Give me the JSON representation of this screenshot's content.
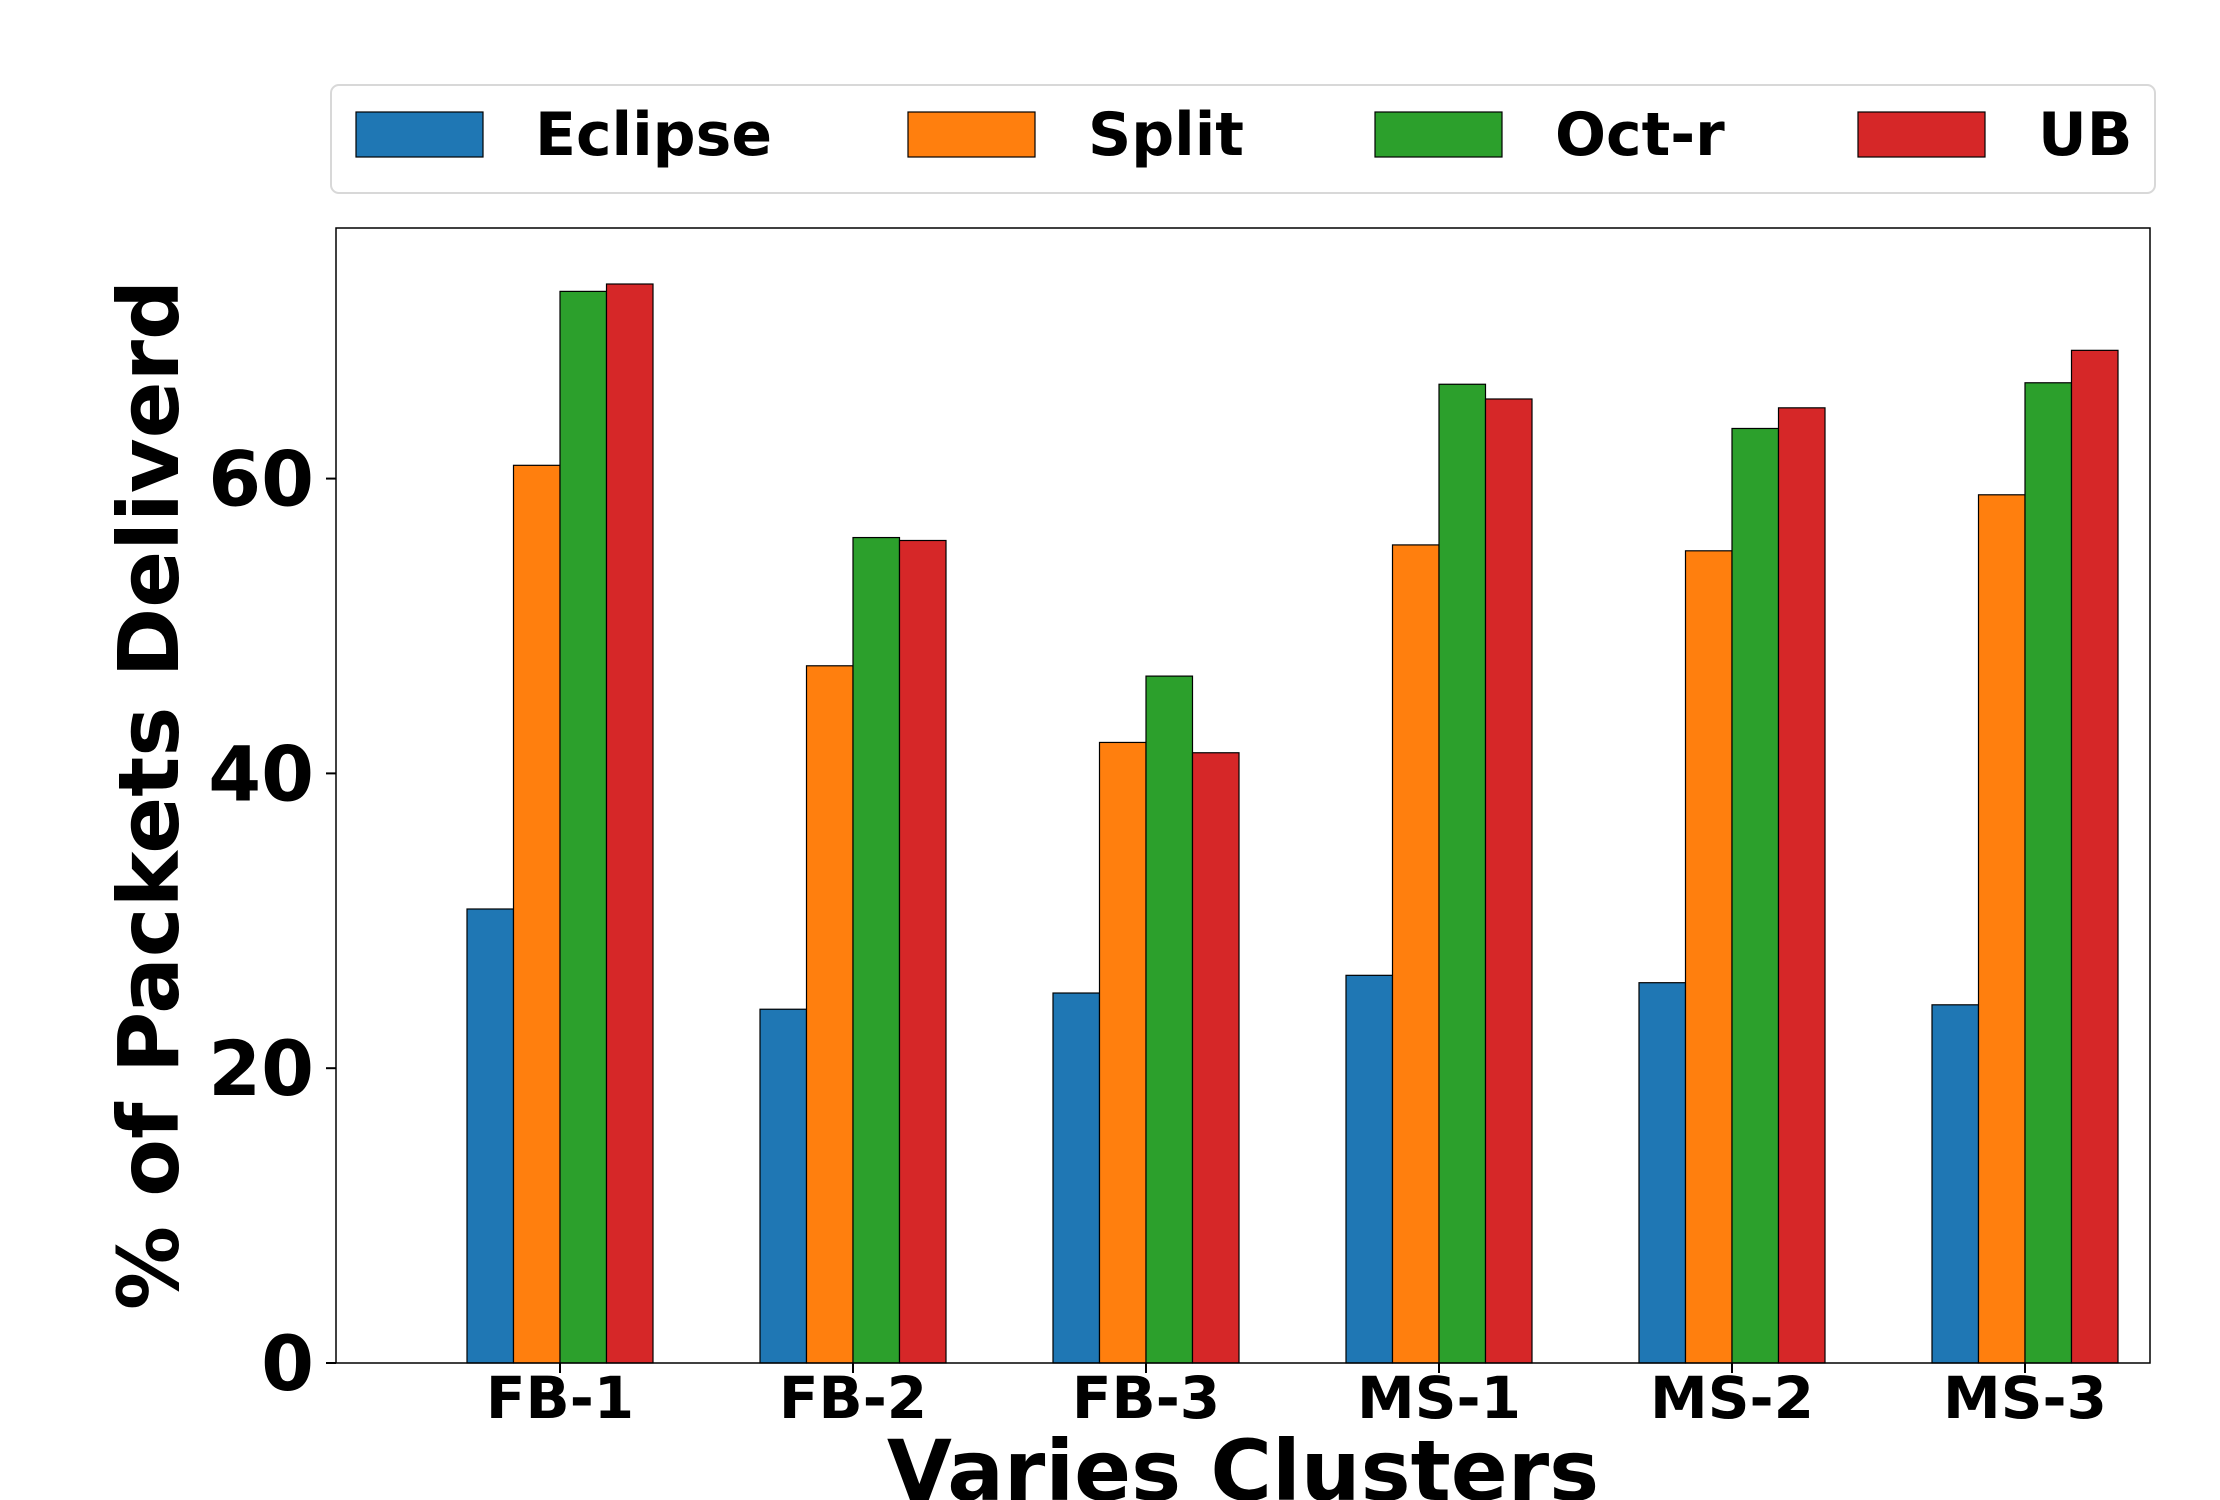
{
  "chart_data": {
    "type": "bar",
    "title": "",
    "xlabel": "Varies Clusters",
    "ylabel": "% of Packets Deliverd",
    "categories": [
      "FB-1",
      "FB-2",
      "FB-3",
      "MS-1",
      "MS-2",
      "MS-3"
    ],
    "series": [
      {
        "name": "Eclipse",
        "color": "#1f77b4",
        "values": [
          30.8,
          24.0,
          25.1,
          26.3,
          25.8,
          24.3
        ]
      },
      {
        "name": "Split",
        "color": "#ff7f0e",
        "values": [
          60.9,
          47.3,
          42.1,
          55.5,
          55.1,
          58.9
        ]
      },
      {
        "name": "Oct-r",
        "color": "#2ca02c",
        "values": [
          72.7,
          56.0,
          46.6,
          66.4,
          63.4,
          66.5
        ]
      },
      {
        "name": "UB",
        "color": "#d62728",
        "values": [
          73.2,
          55.8,
          41.4,
          65.4,
          64.8,
          68.7
        ]
      }
    ],
    "yticks": [
      "0",
      "20",
      "40",
      "60"
    ],
    "ylim": [
      0,
      77
    ],
    "grid": false,
    "legend": "top"
  }
}
